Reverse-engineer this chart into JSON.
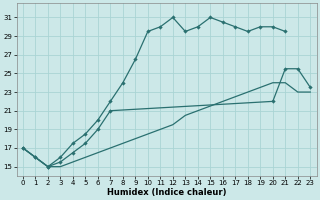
{
  "title": "",
  "xlabel": "Humidex (Indice chaleur)",
  "ylabel": "",
  "bg_color": "#cce8e8",
  "grid_color": "#aad4d4",
  "line_color": "#2a7070",
  "xlim": [
    -0.5,
    23.5
  ],
  "ylim": [
    14,
    32.5
  ],
  "xticks": [
    0,
    1,
    2,
    3,
    4,
    5,
    6,
    7,
    8,
    9,
    10,
    11,
    12,
    13,
    14,
    15,
    16,
    17,
    18,
    19,
    20,
    21,
    22,
    23
  ],
  "yticks": [
    15,
    17,
    19,
    21,
    23,
    25,
    27,
    29,
    31
  ],
  "series1_y": [
    17,
    16,
    15,
    16,
    17.5,
    18.5,
    20,
    22,
    24,
    26.5,
    29.5,
    30,
    31,
    29.5,
    30,
    31,
    30.5,
    30,
    29.5,
    30,
    30,
    29.5,
    null,
    null
  ],
  "series2_y": [
    17,
    16,
    15,
    15.5,
    16.5,
    17.5,
    19,
    21,
    null,
    null,
    null,
    null,
    null,
    null,
    null,
    null,
    null,
    null,
    null,
    null,
    22,
    25.5,
    25.5,
    23.5
  ],
  "series3_y": [
    17,
    16,
    15,
    15,
    15.5,
    16,
    16.5,
    17,
    17.5,
    18,
    18.5,
    19,
    19.5,
    20.5,
    21,
    21.5,
    22,
    22.5,
    23,
    23.5,
    24,
    24,
    23,
    23
  ]
}
